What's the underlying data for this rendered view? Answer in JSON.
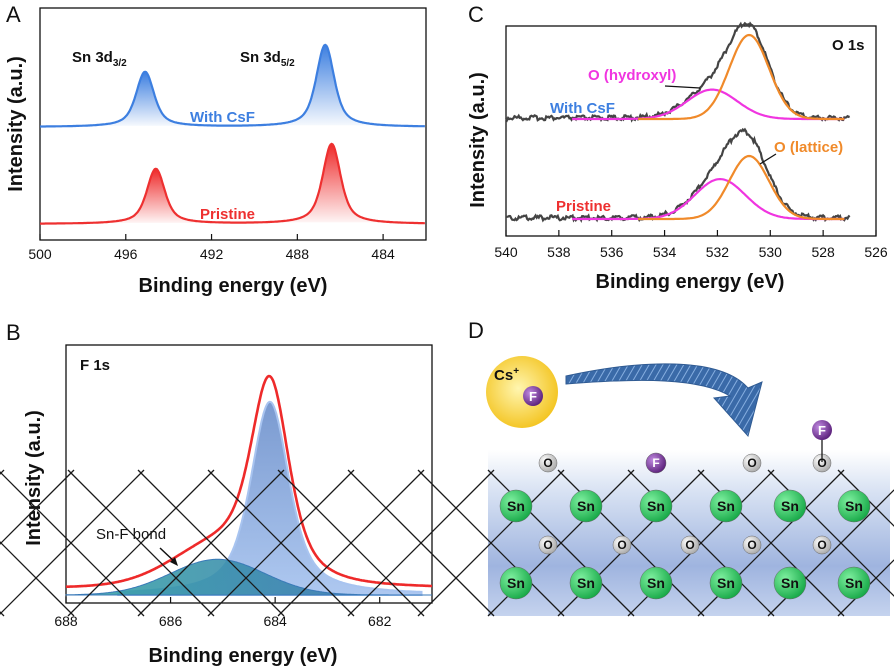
{
  "panel_letters": [
    "A",
    "B",
    "C",
    "D"
  ],
  "colors": {
    "blue": "#3d7fe0",
    "red": "#ee3030",
    "magenta": "#f035e0",
    "orange": "#f08a2a",
    "gray": "#444444",
    "sn_ball": "#22bb55",
    "o_ball": "#c8c8c8",
    "f_ball": "#7a2e9a",
    "cs_ball": "#f5c518"
  },
  "chart_data": [
    {
      "panel": "A",
      "type": "line",
      "xlabel": "Binding energy (eV)",
      "ylabel": "Intensity (a.u.)",
      "xlim": [
        500,
        482
      ],
      "xticks": [
        500,
        496,
        492,
        488,
        484
      ],
      "annotations": [
        "Sn 3d3/2",
        "Sn 3d5/2"
      ],
      "series": [
        {
          "name": "With CsF",
          "color": "#3d7fe0",
          "peaks": [
            {
              "center": 495.1,
              "height": 0.55
            },
            {
              "center": 486.7,
              "height": 0.82
            }
          ]
        },
        {
          "name": "Pristine",
          "color": "#ee3030",
          "peaks": [
            {
              "center": 494.6,
              "height": 0.55
            },
            {
              "center": 486.4,
              "height": 0.8
            }
          ]
        }
      ]
    },
    {
      "panel": "B",
      "type": "area",
      "title": "F 1s",
      "xlabel": "Binding energy (eV)",
      "ylabel": "Intensity (a.u.)",
      "xlim": [
        688,
        681
      ],
      "xticks": [
        688,
        686,
        684,
        682
      ],
      "annotations": [
        "Sn-F bond"
      ],
      "components": [
        {
          "name": "main",
          "center": 684.1,
          "height": 0.92
        },
        {
          "name": "Sn-F bond",
          "center": 685.1,
          "height": 0.17
        }
      ]
    },
    {
      "panel": "C",
      "type": "line",
      "title": "O 1s",
      "xlabel": "Binding energy (eV)",
      "ylabel": "Intensity (a.u.)",
      "xlim": [
        540,
        526
      ],
      "xticks": [
        540,
        538,
        536,
        534,
        532,
        530,
        528,
        526
      ],
      "annotations": [
        "O (hydroxyl)",
        "O (lattice)"
      ],
      "series": [
        {
          "name": "With CsF",
          "lattice": {
            "center": 530.8,
            "height": 0.8
          },
          "hydroxyl": {
            "center": 532.2,
            "height": 0.28
          }
        },
        {
          "name": "Pristine",
          "lattice": {
            "center": 530.8,
            "height": 0.6
          },
          "hydroxyl": {
            "center": 531.9,
            "height": 0.38
          }
        }
      ]
    }
  ],
  "schematic": {
    "cs_label": "Cs",
    "cs_charge": "+",
    "f_label": "F",
    "sn_label": "Sn",
    "o_label": "O"
  }
}
